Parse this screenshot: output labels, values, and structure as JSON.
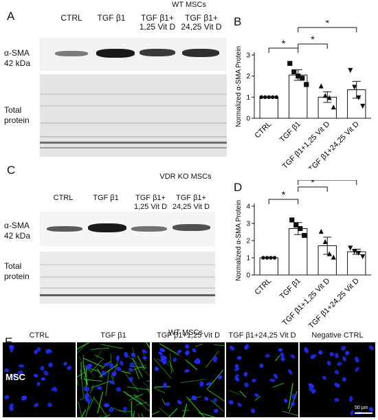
{
  "panel_a": {
    "letter": "A",
    "title": "WT MSCs",
    "lanes": [
      "CTRL",
      "TGF β1",
      "TGF β1+\n1,25 Vit D",
      "TGF β1+\n24,25 Vit D"
    ],
    "band_label": "α-SMA\n42 kDa",
    "total_label": "Total\nprotein"
  },
  "panel_c": {
    "letter": "C",
    "title": "VDR KO MSCs",
    "lanes": [
      "CTRL",
      "TGF β1",
      "TGF β1+\n1,25 Vit D",
      "TGF β1+\n24,25 Vit D"
    ],
    "band_label": "α-SMA\n42 kDa",
    "total_label": "Total\nprotein"
  },
  "panel_b": {
    "letter": "B"
  },
  "panel_d": {
    "letter": "D"
  },
  "panel_e": {
    "letter": "E",
    "title": "WT MSCs",
    "columns": [
      "CTRL",
      "TGF β1",
      "TGF β1+1,25 Vit D",
      "TGF β1+24,25 Vit D",
      "Negative CTRL"
    ],
    "row_label": "MSC",
    "scale_bar": "50 µm",
    "colors": {
      "nuclei": "#1f2cff",
      "actin": "#2fd42f"
    }
  },
  "chart_data": [
    {
      "type": "bar",
      "panel": "B",
      "categories": [
        "CTRL",
        "TGF β1",
        "TGF β1+1,25 Vit D",
        "TGF β1+24,25 Vit D"
      ],
      "values": [
        1.0,
        2.05,
        1.0,
        1.35
      ],
      "errors": [
        0.0,
        0.25,
        0.25,
        0.4
      ],
      "points": [
        [
          1,
          1,
          1,
          1,
          1
        ],
        [
          2.6,
          2.2,
          2.0,
          1.9,
          1.6
        ],
        [
          1.5,
          1.05,
          0.95,
          0.5
        ],
        [
          2.3,
          1.5,
          1.0,
          0.6
        ]
      ],
      "markers": [
        "circle",
        "square",
        "triangle",
        "triangle-down"
      ],
      "ylabel": "Normalized α-SMA Protein",
      "ylim": [
        0,
        3
      ],
      "yticks": [
        0,
        1,
        2,
        3
      ],
      "significance": [
        {
          "from": 0,
          "to": 1,
          "label": "*"
        },
        {
          "from": 1,
          "to": 2,
          "label": "*"
        },
        {
          "from": 1,
          "to": 3,
          "label": "*"
        }
      ],
      "bar_color": "#ffffff"
    },
    {
      "type": "bar",
      "panel": "D",
      "categories": [
        "CTRL",
        "TGF β1",
        "TGF β1+1,25 Vit D",
        "TGF β1+24,25 Vit D"
      ],
      "values": [
        1.0,
        2.7,
        1.7,
        1.35
      ],
      "errors": [
        0.0,
        0.35,
        0.5,
        0.15
      ],
      "points": [
        [
          1,
          1,
          1,
          1
        ],
        [
          3.2,
          2.9,
          2.7,
          2.3
        ],
        [
          2.5,
          1.9,
          1.2,
          1.0
        ],
        [
          1.6,
          1.4,
          1.3,
          1.1
        ]
      ],
      "markers": [
        "circle",
        "square",
        "triangle",
        "triangle-down"
      ],
      "ylabel": "Normalized α-SMA Protein",
      "ylim": [
        0,
        4
      ],
      "yticks": [
        0,
        1,
        2,
        3,
        4
      ],
      "significance": [
        {
          "from": 0,
          "to": 1,
          "label": "*"
        },
        {
          "from": 1,
          "to": 2,
          "label": "*"
        },
        {
          "from": 1,
          "to": 3,
          "label": "*"
        }
      ],
      "bar_color": "#ffffff"
    }
  ]
}
